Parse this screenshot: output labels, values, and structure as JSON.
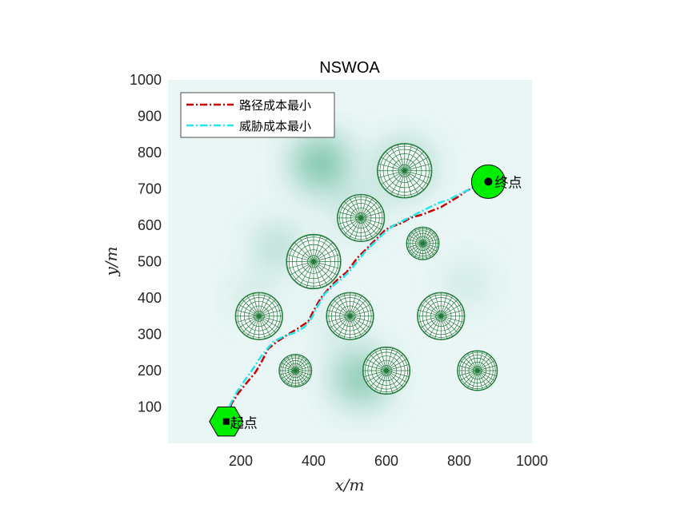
{
  "chart_data": {
    "type": "line",
    "title": "NSWOA",
    "xlabel": "x/m",
    "ylabel": "y/m",
    "xlim": [
      0,
      1000
    ],
    "ylim": [
      0,
      1000
    ],
    "xticks": [
      200,
      400,
      600,
      800,
      1000
    ],
    "yticks": [
      100,
      200,
      300,
      400,
      500,
      600,
      700,
      800,
      900,
      1000
    ],
    "grid": false,
    "legend_position": "top-left",
    "series": [
      {
        "name": "路径成本最小",
        "color": "#cc0000",
        "style": "dash-dot",
        "x": [
          160,
          175,
          195,
          215,
          240,
          255,
          275,
          300,
          330,
          355,
          385,
          400,
          420,
          445,
          470,
          490,
          505,
          520,
          545,
          570,
          595,
          610,
          640,
          665,
          700,
          725,
          750,
          775,
          800,
          820,
          845,
          865,
          880
        ],
        "y": [
          65,
          110,
          140,
          165,
          195,
          220,
          260,
          280,
          300,
          315,
          335,
          365,
          400,
          430,
          455,
          470,
          490,
          510,
          535,
          560,
          585,
          595,
          605,
          620,
          630,
          640,
          650,
          665,
          680,
          695,
          705,
          715,
          720
        ]
      },
      {
        "name": "威胁成本最小",
        "color": "#22e5ee",
        "style": "dash-dot",
        "x": [
          160,
          170,
          185,
          205,
          230,
          260,
          290,
          320,
          350,
          375,
          395,
          410,
          430,
          455,
          480,
          500,
          520,
          540,
          565,
          590,
          620,
          650,
          680,
          710,
          740,
          770,
          800,
          830,
          860,
          880
        ],
        "y": [
          65,
          105,
          135,
          165,
          200,
          245,
          280,
          295,
          305,
          320,
          345,
          375,
          410,
          435,
          455,
          475,
          500,
          525,
          550,
          575,
          600,
          615,
          630,
          645,
          660,
          670,
          685,
          700,
          712,
          720
        ]
      }
    ],
    "threats": [
      {
        "x": 650,
        "y": 750,
        "r": 75
      },
      {
        "x": 530,
        "y": 620,
        "r": 65
      },
      {
        "x": 700,
        "y": 550,
        "r": 45
      },
      {
        "x": 400,
        "y": 500,
        "r": 75
      },
      {
        "x": 250,
        "y": 350,
        "r": 65
      },
      {
        "x": 500,
        "y": 350,
        "r": 65
      },
      {
        "x": 750,
        "y": 350,
        "r": 65
      },
      {
        "x": 350,
        "y": 200,
        "r": 45
      },
      {
        "x": 600,
        "y": 200,
        "r": 65
      },
      {
        "x": 850,
        "y": 200,
        "r": 55
      }
    ],
    "start": {
      "label": "起点",
      "x": 160,
      "y": 60
    },
    "end": {
      "label": "终点",
      "x": 880,
      "y": 720
    },
    "colors": {
      "terrain_light": "#eaf6f6",
      "terrain_dark": "#3fa882",
      "threat": "#1f7a3a",
      "marker": "#00ee00"
    }
  }
}
